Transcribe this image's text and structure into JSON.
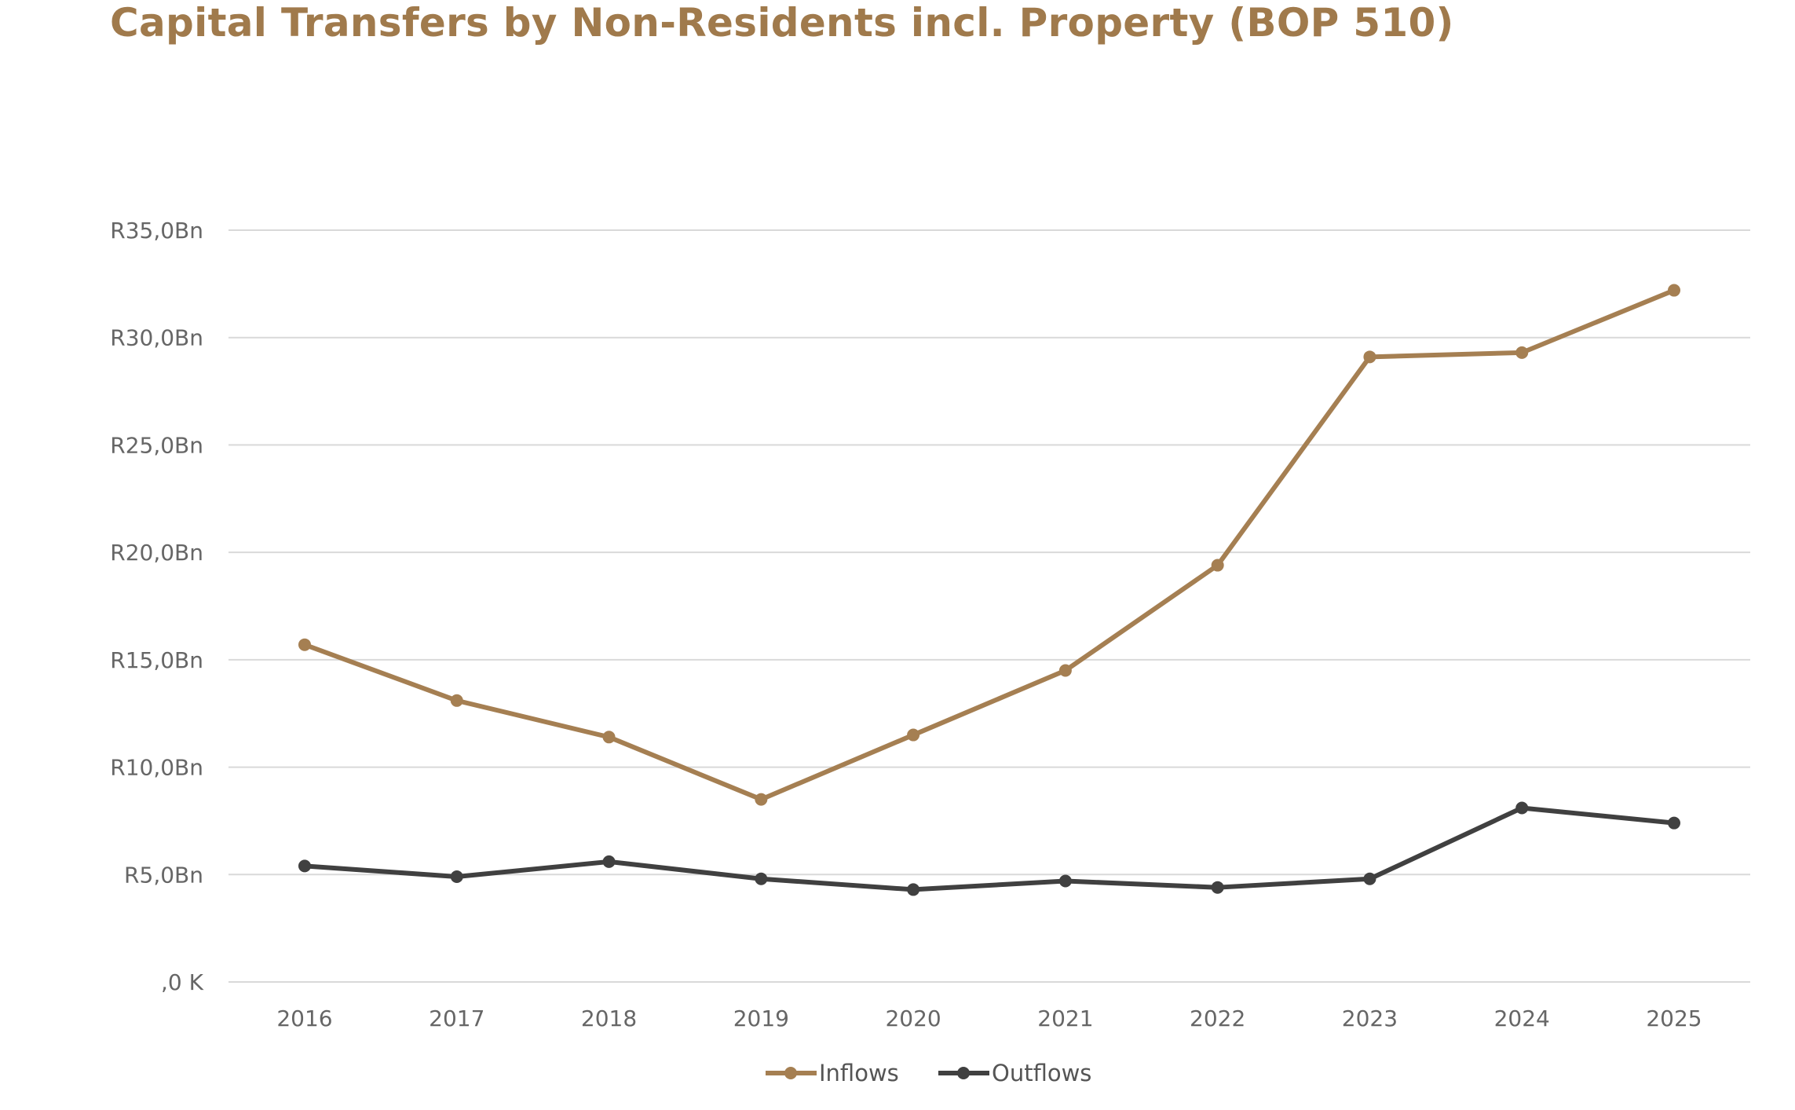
{
  "chart_data": {
    "type": "line",
    "title": "Capital Transfers by Non-Residents incl. Property (BOP 510)",
    "xlabel": "",
    "ylabel": "",
    "categories": [
      "2016",
      "2017",
      "2018",
      "2019",
      "2020",
      "2021",
      "2022",
      "2023",
      "2024",
      "2025"
    ],
    "ylim": [
      0,
      35
    ],
    "yticks": [
      0,
      5,
      10,
      15,
      20,
      25,
      30,
      35
    ],
    "ytick_labels": [
      ",0 K",
      "R5,0Bn",
      "R10,0Bn",
      "R15,0Bn",
      "R20,0Bn",
      "R25,0Bn",
      "R30,0Bn",
      "R35,0Bn"
    ],
    "grid": true,
    "legend_position": "bottom",
    "series": [
      {
        "name": "Inflows",
        "color": "#a57f52",
        "values": [
          15.7,
          13.1,
          11.4,
          8.5,
          11.5,
          14.5,
          19.4,
          29.1,
          29.3,
          32.2
        ]
      },
      {
        "name": "Outflows",
        "color": "#404040",
        "values": [
          5.4,
          4.9,
          5.6,
          4.8,
          4.3,
          4.7,
          4.4,
          4.8,
          8.1,
          7.4
        ]
      }
    ]
  }
}
